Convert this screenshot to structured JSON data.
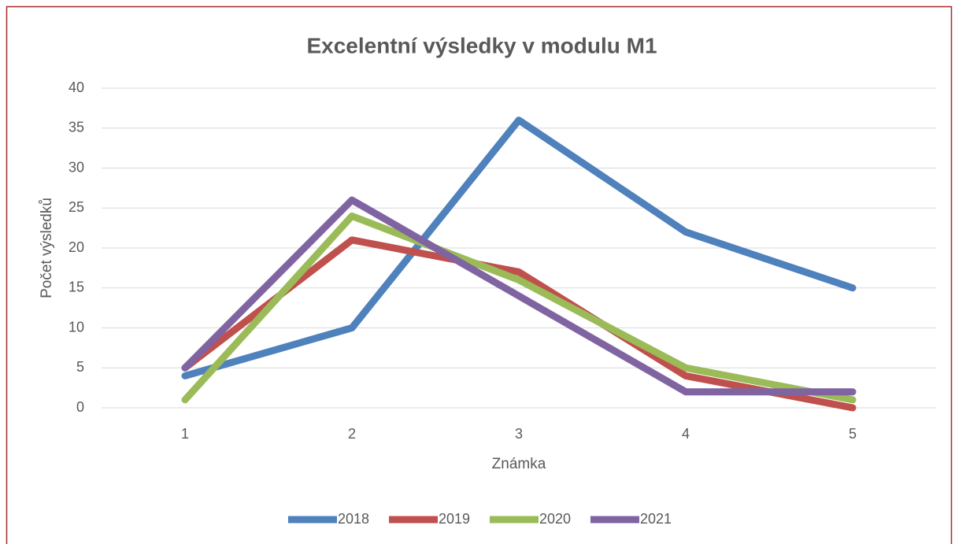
{
  "chart_data": {
    "type": "line",
    "title": "Excelentní výsledky v modulu M1",
    "x_label": "Známka",
    "y_label": "Počet výsledků",
    "categories": [
      "1",
      "2",
      "3",
      "4",
      "5"
    ],
    "series": [
      {
        "name": "2018",
        "color": "#4f81bd",
        "values": [
          4,
          10,
          36,
          22,
          15
        ]
      },
      {
        "name": "2019",
        "color": "#c0504d",
        "values": [
          5,
          21,
          17,
          4,
          0
        ]
      },
      {
        "name": "2020",
        "color": "#9bbb59",
        "values": [
          1,
          24,
          16,
          5,
          1
        ]
      },
      {
        "name": "2021",
        "color": "#8064a2",
        "values": [
          5,
          26,
          14,
          2,
          2
        ]
      }
    ],
    "ylim": [
      0,
      40
    ],
    "yticks": [
      0,
      5,
      10,
      15,
      20,
      25,
      30,
      35,
      40
    ],
    "grid": true,
    "legend": "bottom"
  }
}
